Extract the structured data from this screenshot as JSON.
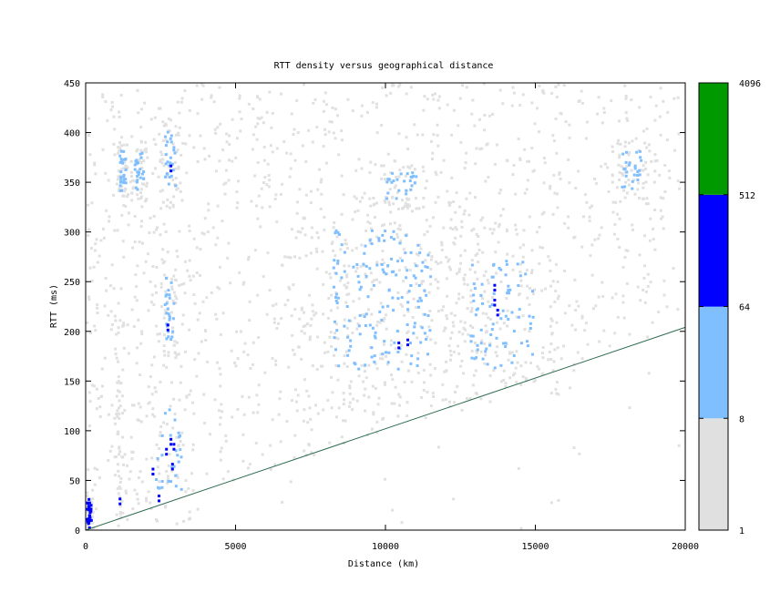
{
  "chart_data": {
    "type": "heatmap",
    "title": "RTT density versus geographical distance",
    "xlabel": "Distance (km)",
    "ylabel": "RTT (ms)",
    "xlim": [
      0,
      20000
    ],
    "ylim": [
      0,
      450
    ],
    "x_ticks": [
      0,
      5000,
      10000,
      15000,
      20000
    ],
    "x_tick_labels": [
      "0",
      "5000",
      "10000",
      "15000",
      "20000"
    ],
    "y_ticks": [
      0,
      50,
      100,
      150,
      200,
      250,
      300,
      350,
      400,
      450
    ],
    "y_tick_labels": [
      "0",
      "50",
      "100",
      "150",
      "200",
      "250",
      "300",
      "350",
      "400",
      "450"
    ],
    "colorbar": {
      "scale": "log",
      "ticks": [
        "1",
        "8",
        "64",
        "512",
        "4096"
      ],
      "bands": [
        {
          "from": 1,
          "to": 8,
          "color": "#e0e0e0"
        },
        {
          "from": 8,
          "to": 64,
          "color": "#80bfff"
        },
        {
          "from": 64,
          "to": 512,
          "color": "#0000ff"
        },
        {
          "from": 512,
          "to": 4096,
          "color": "#009900"
        }
      ]
    },
    "reference_line": {
      "color": "#2e6b4f",
      "points": [
        [
          0,
          0
        ],
        [
          20000,
          204
        ]
      ]
    },
    "clusters": [
      {
        "x": [
          0,
          150
        ],
        "y": [
          0,
          30
        ],
        "level": "high"
      },
      {
        "x": [
          1000,
          1200
        ],
        "y": [
          15,
          170
        ],
        "level": "low"
      },
      {
        "x": [
          1100,
          1300
        ],
        "y": [
          340,
          380
        ],
        "level": "mid"
      },
      {
        "x": [
          1600,
          1900
        ],
        "y": [
          340,
          380
        ],
        "level": "mid"
      },
      {
        "x": [
          2300,
          3200
        ],
        "y": [
          30,
          120
        ],
        "level": "mid"
      },
      {
        "x": [
          2600,
          2900
        ],
        "y": [
          190,
          260
        ],
        "level": "mid"
      },
      {
        "x": [
          2600,
          3000
        ],
        "y": [
          340,
          400
        ],
        "level": "mid"
      },
      {
        "x": [
          8200,
          11500
        ],
        "y": [
          160,
          300
        ],
        "level": "mid"
      },
      {
        "x": [
          10000,
          11000
        ],
        "y": [
          330,
          360
        ],
        "level": "mid"
      },
      {
        "x": [
          12800,
          14900
        ],
        "y": [
          160,
          270
        ],
        "level": "mid"
      },
      {
        "x": [
          17800,
          18500
        ],
        "y": [
          340,
          380
        ],
        "level": "mid"
      }
    ],
    "high_points": [
      [
        2800,
        85
      ],
      [
        2900,
        80
      ],
      [
        2650,
        75
      ],
      [
        2850,
        60
      ],
      [
        2700,
        200
      ],
      [
        2800,
        360
      ],
      [
        10700,
        185
      ],
      [
        10400,
        182
      ],
      [
        13600,
        225
      ],
      [
        13700,
        215
      ],
      [
        13600,
        240
      ],
      [
        1100,
        25
      ],
      [
        2200,
        55
      ],
      [
        2400,
        28
      ],
      [
        50,
        5
      ]
    ]
  }
}
